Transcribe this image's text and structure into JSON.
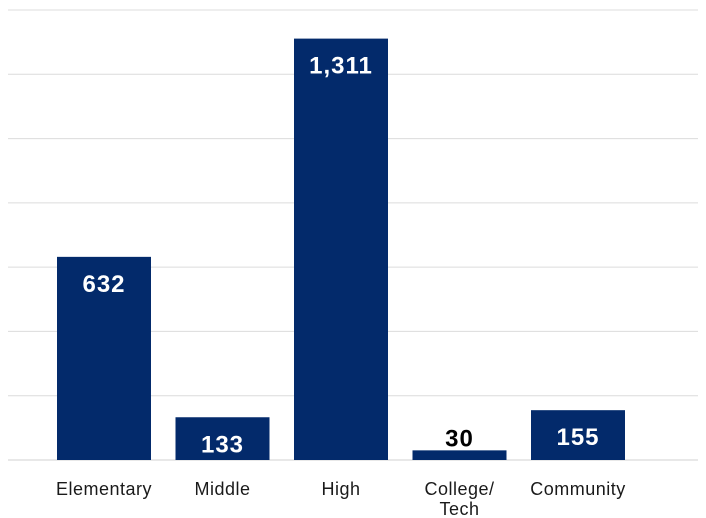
{
  "chart_data": {
    "type": "bar",
    "categories": [
      "Elementary",
      "Middle",
      "High",
      "College/\nTech",
      "Community"
    ],
    "values": [
      632,
      133,
      1311,
      30,
      155
    ],
    "value_labels": [
      "632",
      "133",
      "1,311",
      "30",
      "155"
    ],
    "title": "",
    "xlabel": "",
    "ylabel": "",
    "ylim": [
      0,
      1400
    ],
    "grid": true,
    "legend": "none",
    "colors": {
      "bar": "#032a6b",
      "label_inside": "#ffffff",
      "label_outside": "#000000",
      "grid": "#dcdcdc"
    }
  }
}
